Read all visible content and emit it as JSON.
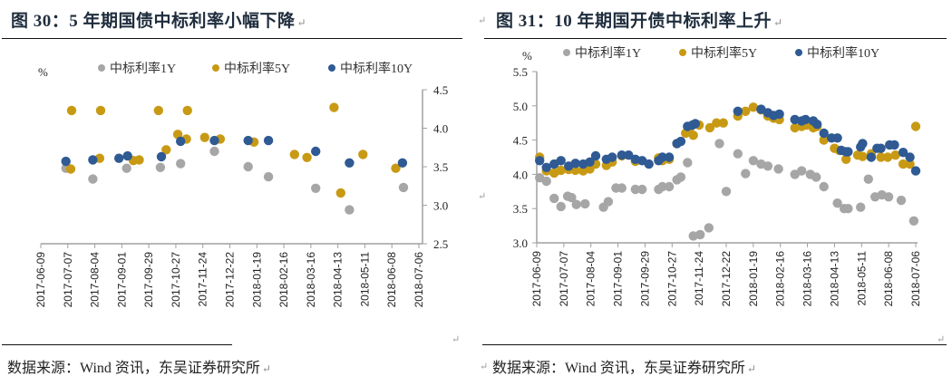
{
  "chart_data": [
    {
      "type": "scatter",
      "title": "图 30：5 年期国债中标利率小幅下降",
      "ylabel": "%",
      "ylim": [
        2.5,
        4.5
      ],
      "yticks": [
        "2.5",
        "3.0",
        "3.5",
        "4.0",
        "4.5"
      ],
      "y_axis_side": "right",
      "xlim": [
        "2017-06-09",
        "2018-07-06"
      ],
      "xticks": [
        "2017-06-09",
        "2017-07-07",
        "2017-08-04",
        "2017-09-01",
        "2017-09-29",
        "2017-10-27",
        "2017-11-24",
        "2017-12-22",
        "2018-01-19",
        "2018-02-16",
        "2018-03-16",
        "2018-04-13",
        "2018-05-11",
        "2018-06-08",
        "2018-07-06"
      ],
      "legend_position": "top",
      "source": "数据来源：Wind 资讯，东吴证券研究所",
      "series": [
        {
          "name": "中标利率1Y",
          "color": "#a6a6a6",
          "points": [
            [
              "2017-07-05",
              3.48
            ],
            [
              "2017-08-02",
              3.34
            ],
            [
              "2017-09-06",
              3.48
            ],
            [
              "2017-10-11",
              3.49
            ],
            [
              "2017-11-01",
              3.54
            ],
            [
              "2017-12-06",
              3.7
            ],
            [
              "2018-01-10",
              3.5
            ],
            [
              "2018-01-31",
              3.37
            ],
            [
              "2018-03-21",
              3.22
            ],
            [
              "2018-04-25",
              2.94
            ],
            [
              "2018-06-20",
              3.23
            ]
          ]
        },
        {
          "name": "中标利率5Y",
          "color": "#c89a14",
          "points": [
            [
              "2017-07-10",
              3.47
            ],
            [
              "2017-07-11",
              4.23
            ],
            [
              "2017-08-10",
              4.23
            ],
            [
              "2017-08-09",
              3.61
            ],
            [
              "2017-09-13",
              3.58
            ],
            [
              "2017-09-19",
              3.59
            ],
            [
              "2017-10-09",
              4.23
            ],
            [
              "2017-10-17",
              3.72
            ],
            [
              "2017-10-29",
              3.92
            ],
            [
              "2017-11-08",
              4.23
            ],
            [
              "2017-11-07",
              3.86
            ],
            [
              "2017-11-26",
              3.88
            ],
            [
              "2017-12-12",
              3.86
            ],
            [
              "2018-01-16",
              3.82
            ],
            [
              "2018-02-27",
              3.66
            ],
            [
              "2018-03-12",
              3.62
            ],
            [
              "2018-04-09",
              4.27
            ],
            [
              "2018-04-16",
              3.16
            ],
            [
              "2018-05-09",
              3.66
            ],
            [
              "2018-06-12",
              3.48
            ]
          ]
        },
        {
          "name": "中标利率10Y",
          "color": "#2f5a93",
          "points": [
            [
              "2017-07-05",
              3.57
            ],
            [
              "2017-08-02",
              3.59
            ],
            [
              "2017-08-29",
              3.61
            ],
            [
              "2017-09-07",
              3.64
            ],
            [
              "2017-10-12",
              3.63
            ],
            [
              "2017-11-01",
              3.83
            ],
            [
              "2017-12-06",
              3.84
            ],
            [
              "2018-01-10",
              3.84
            ],
            [
              "2018-01-31",
              3.84
            ],
            [
              "2018-03-21",
              3.7
            ],
            [
              "2018-04-25",
              3.55
            ],
            [
              "2018-06-19",
              3.55
            ]
          ]
        }
      ]
    },
    {
      "type": "scatter",
      "title": "图 31：10 年期国开债中标利率上升",
      "ylabel": "%",
      "ylim": [
        3.0,
        5.5
      ],
      "yticks": [
        "3.0",
        "3.5",
        "4.0",
        "4.5",
        "5.0",
        "5.5"
      ],
      "y_axis_side": "left",
      "xlim": [
        "2017-06-09",
        "2018-07-06"
      ],
      "xticks": [
        "2017-06-09",
        "2017-07-07",
        "2017-08-04",
        "2017-09-01",
        "2017-09-29",
        "2017-10-27",
        "2017-11-24",
        "2017-12-22",
        "2018-01-19",
        "2018-02-16",
        "2018-03-16",
        "2018-04-13",
        "2018-05-11",
        "2018-06-08",
        "2018-07-06"
      ],
      "legend_position": "top",
      "source": "数据来源：Wind 资讯，东吴证券研究所",
      "series": [
        {
          "name": "中标利率1Y",
          "color": "#a6a6a6",
          "points": [
            [
              "2017-06-12",
              3.95
            ],
            [
              "2017-06-19",
              3.9
            ],
            [
              "2017-06-27",
              3.65
            ],
            [
              "2017-07-04",
              3.53
            ],
            [
              "2017-07-11",
              3.68
            ],
            [
              "2017-07-15",
              3.66
            ],
            [
              "2017-07-20",
              3.56
            ],
            [
              "2017-07-29",
              3.57
            ],
            [
              "2017-08-17",
              3.52
            ],
            [
              "2017-08-22",
              3.6
            ],
            [
              "2017-08-30",
              3.8
            ],
            [
              "2017-09-05",
              3.8
            ],
            [
              "2017-09-19",
              3.78
            ],
            [
              "2017-09-26",
              3.78
            ],
            [
              "2017-10-13",
              3.78
            ],
            [
              "2017-10-17",
              3.82
            ],
            [
              "2017-10-24",
              3.82
            ],
            [
              "2017-11-01",
              3.92
            ],
            [
              "2017-11-05",
              3.96
            ],
            [
              "2017-11-12",
              4.17
            ],
            [
              "2017-11-18",
              3.1
            ],
            [
              "2017-11-25",
              3.12
            ],
            [
              "2017-12-04",
              3.22
            ],
            [
              "2017-12-15",
              4.45
            ],
            [
              "2017-12-22",
              3.75
            ],
            [
              "2018-01-03",
              4.3
            ],
            [
              "2018-01-11",
              4.01
            ],
            [
              "2018-01-19",
              4.2
            ],
            [
              "2018-01-27",
              4.15
            ],
            [
              "2018-02-03",
              4.12
            ],
            [
              "2018-02-14",
              4.08
            ],
            [
              "2018-03-03",
              4.0
            ],
            [
              "2018-03-10",
              4.05
            ],
            [
              "2018-03-19",
              4.0
            ],
            [
              "2018-03-25",
              3.96
            ],
            [
              "2018-04-02",
              3.82
            ],
            [
              "2018-04-16",
              3.58
            ],
            [
              "2018-04-23",
              3.5
            ],
            [
              "2018-04-27",
              3.5
            ],
            [
              "2018-05-10",
              3.52
            ],
            [
              "2018-05-18",
              3.93
            ],
            [
              "2018-05-25",
              3.67
            ],
            [
              "2018-06-01",
              3.7
            ],
            [
              "2018-06-08",
              3.67
            ],
            [
              "2018-06-21",
              3.62
            ],
            [
              "2018-07-04",
              3.32
            ]
          ]
        },
        {
          "name": "中标利率5Y",
          "color": "#c89a14",
          "points": [
            [
              "2017-06-12",
              4.25
            ],
            [
              "2017-06-19",
              4.05
            ],
            [
              "2017-06-27",
              4.02
            ],
            [
              "2017-07-04",
              4.06
            ],
            [
              "2017-07-12",
              4.07
            ],
            [
              "2017-07-19",
              4.06
            ],
            [
              "2017-07-27",
              4.05
            ],
            [
              "2017-08-03",
              4.08
            ],
            [
              "2017-08-09",
              4.15
            ],
            [
              "2017-08-20",
              4.13
            ],
            [
              "2017-08-26",
              4.18
            ],
            [
              "2017-09-05",
              4.27
            ],
            [
              "2017-09-19",
              4.19
            ],
            [
              "2017-10-13",
              4.24
            ],
            [
              "2017-10-17",
              4.2
            ],
            [
              "2017-10-24",
              4.22
            ],
            [
              "2017-11-01",
              4.45
            ],
            [
              "2017-11-10",
              4.6
            ],
            [
              "2017-11-14",
              4.62
            ],
            [
              "2017-11-18",
              4.57
            ],
            [
              "2017-11-24",
              4.72
            ],
            [
              "2017-12-05",
              4.68
            ],
            [
              "2017-12-12",
              4.75
            ],
            [
              "2017-12-19",
              4.75
            ],
            [
              "2018-01-03",
              4.85
            ],
            [
              "2018-01-11",
              4.92
            ],
            [
              "2018-01-19",
              4.98
            ],
            [
              "2018-01-27",
              4.94
            ],
            [
              "2018-02-03",
              4.85
            ],
            [
              "2018-02-09",
              4.82
            ],
            [
              "2018-02-15",
              4.8
            ],
            [
              "2018-03-03",
              4.68
            ],
            [
              "2018-03-10",
              4.7
            ],
            [
              "2018-03-15",
              4.72
            ],
            [
              "2018-03-22",
              4.68
            ],
            [
              "2018-03-26",
              4.7
            ],
            [
              "2018-04-02",
              4.5
            ],
            [
              "2018-04-13",
              4.38
            ],
            [
              "2018-04-18",
              4.35
            ],
            [
              "2018-04-25",
              4.22
            ],
            [
              "2018-05-07",
              4.28
            ],
            [
              "2018-05-12",
              4.26
            ],
            [
              "2018-05-21",
              4.3
            ],
            [
              "2018-05-31",
              4.25
            ],
            [
              "2018-06-07",
              4.25
            ],
            [
              "2018-06-15",
              4.28
            ],
            [
              "2018-06-23",
              4.15
            ],
            [
              "2018-06-30",
              4.15
            ],
            [
              "2018-07-06",
              4.7
            ]
          ]
        },
        {
          "name": "中标利率10Y",
          "color": "#2f5a93",
          "points": [
            [
              "2017-06-12",
              4.2
            ],
            [
              "2017-06-19",
              4.1
            ],
            [
              "2017-06-27",
              4.15
            ],
            [
              "2017-07-04",
              4.2
            ],
            [
              "2017-07-12",
              4.12
            ],
            [
              "2017-07-19",
              4.16
            ],
            [
              "2017-07-27",
              4.15
            ],
            [
              "2017-08-03",
              4.18
            ],
            [
              "2017-08-09",
              4.27
            ],
            [
              "2017-08-20",
              4.22
            ],
            [
              "2017-08-26",
              4.25
            ],
            [
              "2017-09-05",
              4.28
            ],
            [
              "2017-09-12",
              4.28
            ],
            [
              "2017-09-19",
              4.22
            ],
            [
              "2017-09-26",
              4.2
            ],
            [
              "2017-10-03",
              4.15
            ],
            [
              "2017-10-13",
              4.2
            ],
            [
              "2017-10-17",
              4.25
            ],
            [
              "2017-10-24",
              4.25
            ],
            [
              "2017-11-01",
              4.45
            ],
            [
              "2017-11-05",
              4.48
            ],
            [
              "2017-11-12",
              4.7
            ],
            [
              "2017-11-17",
              4.72
            ],
            [
              "2017-11-20",
              4.74
            ],
            [
              "2018-01-03",
              4.92
            ],
            [
              "2018-01-27",
              4.95
            ],
            [
              "2018-02-03",
              4.9
            ],
            [
              "2018-02-09",
              4.86
            ],
            [
              "2018-02-15",
              4.88
            ],
            [
              "2018-03-03",
              4.8
            ],
            [
              "2018-03-10",
              4.78
            ],
            [
              "2018-03-14",
              4.8
            ],
            [
              "2018-03-22",
              4.78
            ],
            [
              "2018-03-26",
              4.73
            ],
            [
              "2018-04-02",
              4.6
            ],
            [
              "2018-04-10",
              4.53
            ],
            [
              "2018-04-16",
              4.53
            ],
            [
              "2018-04-20",
              4.35
            ],
            [
              "2018-04-25",
              4.33
            ],
            [
              "2018-04-27",
              4.33
            ],
            [
              "2018-05-10",
              4.4
            ],
            [
              "2018-05-12",
              4.45
            ],
            [
              "2018-05-21",
              4.25
            ],
            [
              "2018-05-27",
              4.38
            ],
            [
              "2018-05-31",
              4.38
            ],
            [
              "2018-06-09",
              4.43
            ],
            [
              "2018-06-14",
              4.43
            ],
            [
              "2018-06-23",
              4.32
            ],
            [
              "2018-06-30",
              4.25
            ],
            [
              "2018-07-06",
              4.05
            ]
          ]
        }
      ]
    }
  ]
}
